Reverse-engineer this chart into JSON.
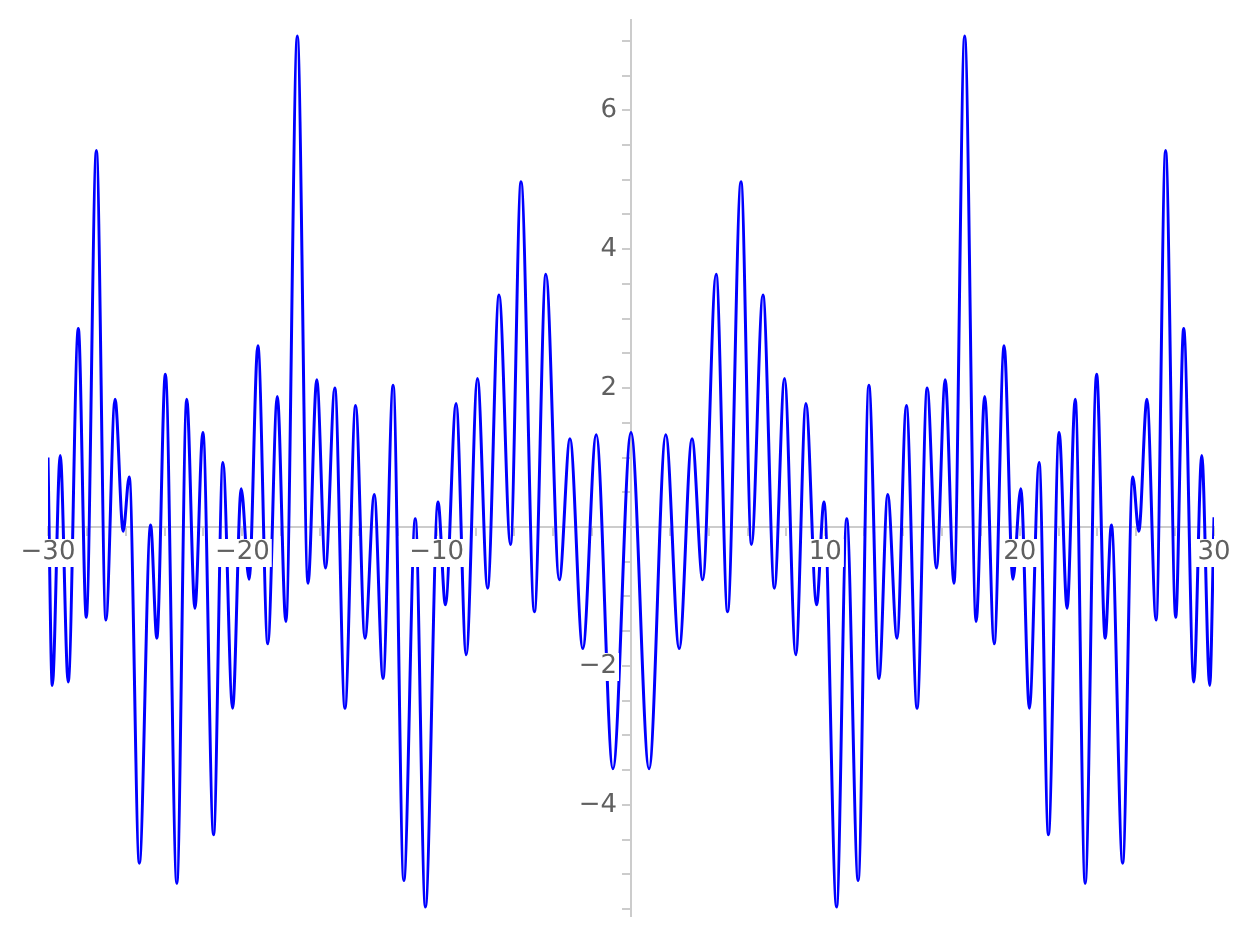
{
  "chart_data": {
    "type": "line",
    "line_style": "solid",
    "marker": "none",
    "legend": false,
    "grid": false,
    "x": [
      -30,
      -29.78,
      -29.37,
      -28.96,
      -28.44,
      -28.03,
      -27.51,
      -27.02,
      -26.55,
      -26.13,
      -25.82,
      -25.3,
      -24.72,
      -24.4,
      -23.96,
      -23.37,
      -22.86,
      -22.44,
      -22.03,
      -21.48,
      -21.0,
      -20.5,
      -20.06,
      -19.65,
      -19.2,
      -18.69,
      -18.2,
      -17.76,
      -17.17,
      -16.62,
      -16.17,
      -15.72,
      -15.24,
      -14.72,
      -14.17,
      -13.69,
      -13.21,
      -12.76,
      -12.24,
      -11.69,
      -11.1,
      -10.58,
      -9.93,
      -9.55,
      -9.0,
      -8.48,
      -7.9,
      -7.38,
      -6.79,
      -6.2,
      -5.66,
      -4.97,
      -4.38,
      -3.69,
      -3.14,
      -2.48,
      -1.79,
      -0.93,
      0,
      0.93,
      1.79,
      2.48,
      3.14,
      3.69,
      4.38,
      4.97,
      5.66,
      6.2,
      6.79,
      7.38,
      7.9,
      8.48,
      9.0,
      9.55,
      9.93,
      10.58,
      11.1,
      11.69,
      12.24,
      12.76,
      13.21,
      13.69,
      14.17,
      14.72,
      15.24,
      15.72,
      16.17,
      16.62,
      17.17,
      17.76,
      18.2,
      18.69,
      19.2,
      19.65,
      20.06,
      20.5,
      21.0,
      21.48,
      22.03,
      22.44,
      22.86,
      23.37,
      23.96,
      24.4,
      24.72,
      25.3,
      25.82,
      26.13,
      26.55,
      27.02,
      27.51,
      28.03,
      28.44,
      28.96,
      29.37,
      29.78,
      30
    ],
    "series": [
      {
        "color": "#0000ff",
        "values": [
          1.0,
          -2.28,
          1.03,
          -2.23,
          2.86,
          -1.3,
          5.42,
          -1.34,
          1.84,
          -0.06,
          0.72,
          -4.84,
          0.03,
          -1.6,
          2.2,
          -5.13,
          1.84,
          -1.17,
          1.36,
          -4.43,
          0.93,
          -2.61,
          0.55,
          -0.75,
          2.61,
          -1.68,
          1.88,
          -1.36,
          7.07,
          -0.81,
          2.12,
          -0.59,
          2.0,
          -2.61,
          1.75,
          -1.6,
          0.47,
          -2.18,
          2.04,
          -5.09,
          0.12,
          -5.47,
          0.36,
          -1.12,
          1.78,
          -1.84,
          2.14,
          -0.88,
          3.34,
          -0.25,
          4.97,
          -1.22,
          3.64,
          -0.76,
          1.27,
          -1.75,
          1.33,
          -3.48,
          1.36,
          -3.48,
          1.33,
          -1.75,
          1.27,
          -0.76,
          3.64,
          -1.22,
          4.97,
          -0.25,
          3.34,
          -0.88,
          2.14,
          -1.84,
          1.78,
          -1.12,
          0.36,
          -5.47,
          0.12,
          -5.09,
          2.04,
          -2.18,
          0.47,
          -1.6,
          1.75,
          -2.61,
          2.0,
          -0.59,
          2.12,
          -0.81,
          7.07,
          -1.36,
          1.88,
          -1.68,
          2.61,
          -0.75,
          0.55,
          -2.61,
          0.93,
          -4.43,
          1.36,
          -1.17,
          1.84,
          -5.13,
          2.2,
          -1.6,
          0.03,
          -4.84,
          0.72,
          -0.06,
          1.84,
          -1.34,
          5.42,
          -1.3,
          2.86,
          -2.23,
          1.03,
          -2.28,
          0.14
        ]
      }
    ],
    "xlim": [
      -30,
      30
    ],
    "ylim": [
      -5.6,
      7.3
    ],
    "xticks": [
      {
        "value": -30,
        "label": "−30"
      },
      {
        "value": -28,
        "label": null
      },
      {
        "value": -26,
        "label": null
      },
      {
        "value": -24,
        "label": null
      },
      {
        "value": -22,
        "label": null
      },
      {
        "value": -20,
        "label": "−20"
      },
      {
        "value": -18,
        "label": null
      },
      {
        "value": -16,
        "label": null
      },
      {
        "value": -14,
        "label": null
      },
      {
        "value": -12,
        "label": null
      },
      {
        "value": -10,
        "label": "−10"
      },
      {
        "value": -8,
        "label": null
      },
      {
        "value": -6,
        "label": null
      },
      {
        "value": -4,
        "label": null
      },
      {
        "value": -2,
        "label": null
      },
      {
        "value": 0,
        "label": null
      },
      {
        "value": 2,
        "label": null
      },
      {
        "value": 4,
        "label": null
      },
      {
        "value": 6,
        "label": null
      },
      {
        "value": 8,
        "label": null
      },
      10,
      {
        "value": 12,
        "label": null
      },
      {
        "value": 14,
        "label": null
      },
      {
        "value": 16,
        "label": null
      },
      {
        "value": 18,
        "label": null
      },
      20,
      {
        "value": 22,
        "label": null
      },
      {
        "value": 24,
        "label": null
      },
      {
        "value": 26,
        "label": null
      },
      {
        "value": 28,
        "label": null
      },
      30
    ],
    "yticks": [
      {
        "value": -5.5,
        "label": null
      },
      {
        "value": -5,
        "label": null
      },
      {
        "value": -4.5,
        "label": null
      },
      {
        "value": -4,
        "label": "−4"
      },
      {
        "value": -3.5,
        "label": null
      },
      {
        "value": -3,
        "label": null
      },
      {
        "value": -2.5,
        "label": null
      },
      {
        "value": -2,
        "label": "−2"
      },
      {
        "value": -1.5,
        "label": null
      },
      {
        "value": -1,
        "label": null
      },
      {
        "value": -0.5,
        "label": null
      },
      {
        "value": 0,
        "label": null
      },
      {
        "value": 0.5,
        "label": null
      },
      {
        "value": 1,
        "label": null
      },
      {
        "value": 1.5,
        "label": null
      },
      2,
      {
        "value": 2.5,
        "label": null
      },
      {
        "value": 3,
        "label": null
      },
      {
        "value": 3.5,
        "label": null
      },
      4,
      {
        "value": 4.5,
        "label": null
      },
      {
        "value": 5,
        "label": null
      },
      {
        "value": 5.5,
        "label": null
      },
      6,
      {
        "value": 6.5,
        "label": null
      },
      {
        "value": 7,
        "label": null
      }
    ]
  }
}
